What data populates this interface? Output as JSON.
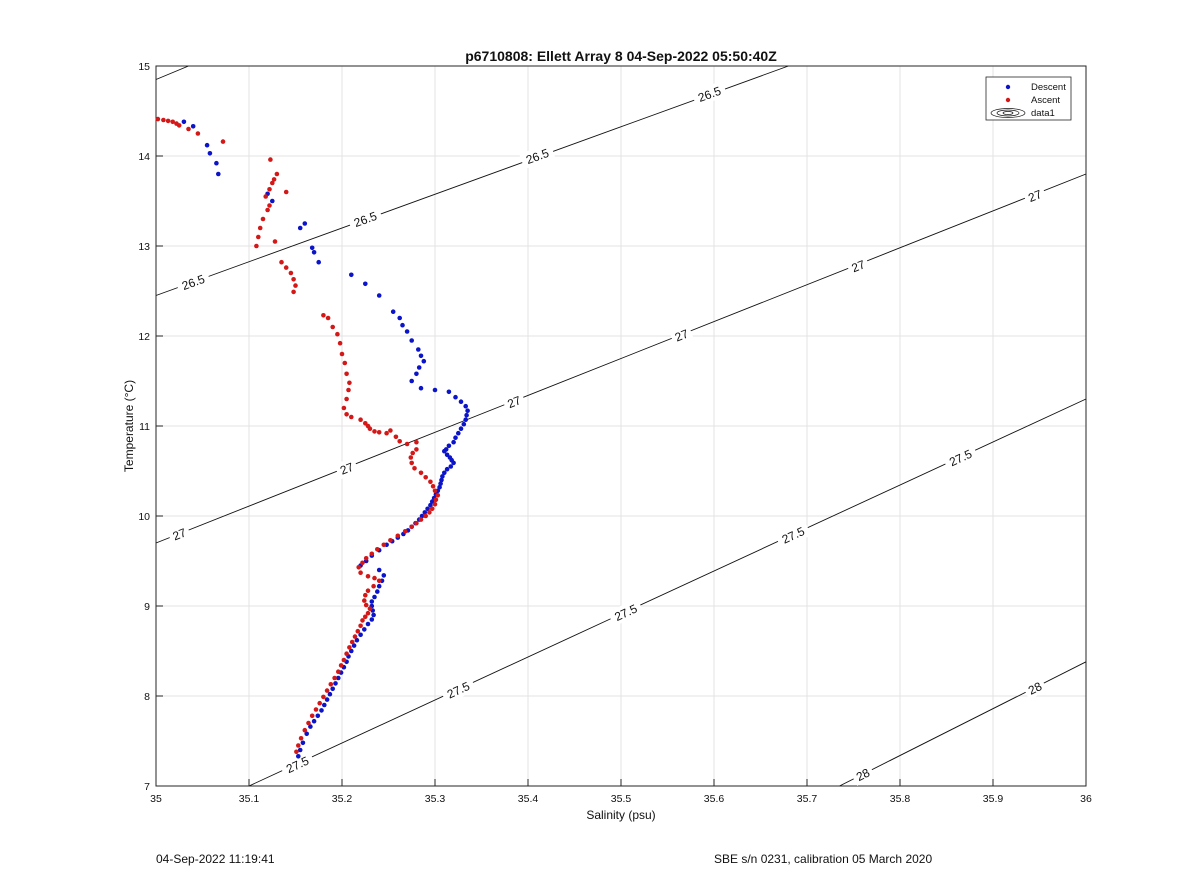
{
  "figure": {
    "title": "p6710808: Ellett Array 8 04-Sep-2022 05:50:40Z",
    "footer_left": "04-Sep-2022 11:19:41",
    "footer_right": "SBE s/n 0231, calibration 05 March 2020"
  },
  "chart_data": {
    "type": "scatter",
    "title": "p6710808: Ellett Array 8 04-Sep-2022 05:50:40Z",
    "xlabel": "Salinity (psu)",
    "ylabel": "Temperature (°C)",
    "xlim": [
      35,
      36
    ],
    "ylim": [
      7,
      15
    ],
    "xticks": [
      "35",
      "35.1",
      "35.2",
      "35.3",
      "35.4",
      "35.5",
      "35.6",
      "35.7",
      "35.8",
      "35.9",
      "36"
    ],
    "yticks": [
      "7",
      "8",
      "9",
      "10",
      "11",
      "12",
      "13",
      "14",
      "15"
    ],
    "grid": true,
    "legend": {
      "placement": "top-right",
      "entries": [
        {
          "label": "Descent",
          "color": "#0b14c8",
          "marker": "dot"
        },
        {
          "label": "Ascent",
          "color": "#d41818",
          "marker": "dot"
        },
        {
          "label": "data1",
          "color": "#000000",
          "marker": "contour"
        }
      ]
    },
    "series": [
      {
        "name": "Descent",
        "color": "#0b14c8",
        "points": [
          [
            35.03,
            14.38
          ],
          [
            35.04,
            14.33
          ],
          [
            35.055,
            14.12
          ],
          [
            35.058,
            14.03
          ],
          [
            35.065,
            13.92
          ],
          [
            35.067,
            13.8
          ],
          [
            35.12,
            13.58
          ],
          [
            35.125,
            13.5
          ],
          [
            35.16,
            13.25
          ],
          [
            35.155,
            13.2
          ],
          [
            35.168,
            12.98
          ],
          [
            35.17,
            12.93
          ],
          [
            35.175,
            12.82
          ],
          [
            35.21,
            12.68
          ],
          [
            35.225,
            12.58
          ],
          [
            35.24,
            12.45
          ],
          [
            35.255,
            12.27
          ],
          [
            35.262,
            12.2
          ],
          [
            35.265,
            12.12
          ],
          [
            35.27,
            12.05
          ],
          [
            35.275,
            11.95
          ],
          [
            35.282,
            11.85
          ],
          [
            35.285,
            11.78
          ],
          [
            35.288,
            11.72
          ],
          [
            35.283,
            11.65
          ],
          [
            35.28,
            11.58
          ],
          [
            35.275,
            11.5
          ],
          [
            35.285,
            11.42
          ],
          [
            35.3,
            11.4
          ],
          [
            35.315,
            11.38
          ],
          [
            35.322,
            11.32
          ],
          [
            35.328,
            11.27
          ],
          [
            35.333,
            11.22
          ],
          [
            35.335,
            11.17
          ],
          [
            35.334,
            11.12
          ],
          [
            35.333,
            11.07
          ],
          [
            35.331,
            11.02
          ],
          [
            35.328,
            10.97
          ],
          [
            35.325,
            10.92
          ],
          [
            35.322,
            10.87
          ],
          [
            35.32,
            10.82
          ],
          [
            35.315,
            10.78
          ],
          [
            35.312,
            10.74
          ],
          [
            35.31,
            10.72
          ],
          [
            35.313,
            10.68
          ],
          [
            35.316,
            10.65
          ],
          [
            35.318,
            10.62
          ],
          [
            35.32,
            10.59
          ],
          [
            35.317,
            10.55
          ],
          [
            35.313,
            10.52
          ],
          [
            35.31,
            10.48
          ],
          [
            35.308,
            10.44
          ],
          [
            35.307,
            10.4
          ],
          [
            35.306,
            10.36
          ],
          [
            35.305,
            10.32
          ],
          [
            35.303,
            10.28
          ],
          [
            35.301,
            10.24
          ],
          [
            35.299,
            10.2
          ],
          [
            35.297,
            10.16
          ],
          [
            35.295,
            10.12
          ],
          [
            35.292,
            10.08
          ],
          [
            35.289,
            10.04
          ],
          [
            35.286,
            10.0
          ],
          [
            35.283,
            9.96
          ],
          [
            35.279,
            9.92
          ],
          [
            35.275,
            9.88
          ],
          [
            35.271,
            9.84
          ],
          [
            35.266,
            9.8
          ],
          [
            35.26,
            9.76
          ],
          [
            35.254,
            9.72
          ],
          [
            35.248,
            9.68
          ],
          [
            35.24,
            9.62
          ],
          [
            35.232,
            9.56
          ],
          [
            35.226,
            9.5
          ],
          [
            35.22,
            9.45
          ],
          [
            35.24,
            9.4
          ],
          [
            35.245,
            9.34
          ],
          [
            35.243,
            9.28
          ],
          [
            35.24,
            9.22
          ],
          [
            35.238,
            9.16
          ],
          [
            35.235,
            9.1
          ],
          [
            35.232,
            9.05
          ],
          [
            35.232,
            9.0
          ],
          [
            35.233,
            8.95
          ],
          [
            35.234,
            8.9
          ],
          [
            35.232,
            8.85
          ],
          [
            35.228,
            8.8
          ],
          [
            35.224,
            8.74
          ],
          [
            35.22,
            8.68
          ],
          [
            35.216,
            8.62
          ],
          [
            35.213,
            8.56
          ],
          [
            35.21,
            8.5
          ],
          [
            35.207,
            8.44
          ],
          [
            35.205,
            8.38
          ],
          [
            35.202,
            8.32
          ],
          [
            35.199,
            8.26
          ],
          [
            35.196,
            8.2
          ],
          [
            35.193,
            8.14
          ],
          [
            35.19,
            8.08
          ],
          [
            35.187,
            8.02
          ],
          [
            35.184,
            7.96
          ],
          [
            35.181,
            7.9
          ],
          [
            35.178,
            7.84
          ],
          [
            35.174,
            7.78
          ],
          [
            35.17,
            7.72
          ],
          [
            35.166,
            7.66
          ],
          [
            35.162,
            7.58
          ],
          [
            35.158,
            7.48
          ],
          [
            35.155,
            7.4
          ],
          [
            35.153,
            7.33
          ]
        ]
      },
      {
        "name": "Ascent",
        "color": "#d41818",
        "points": [
          [
            35.002,
            14.41
          ],
          [
            35.008,
            14.4
          ],
          [
            35.013,
            14.39
          ],
          [
            35.018,
            14.38
          ],
          [
            35.022,
            14.36
          ],
          [
            35.025,
            14.34
          ],
          [
            35.035,
            14.3
          ],
          [
            35.045,
            14.25
          ],
          [
            35.072,
            14.16
          ],
          [
            35.123,
            13.96
          ],
          [
            35.13,
            13.8
          ],
          [
            35.127,
            13.74
          ],
          [
            35.125,
            13.7
          ],
          [
            35.122,
            13.63
          ],
          [
            35.14,
            13.6
          ],
          [
            35.118,
            13.55
          ],
          [
            35.122,
            13.45
          ],
          [
            35.12,
            13.4
          ],
          [
            35.115,
            13.3
          ],
          [
            35.112,
            13.2
          ],
          [
            35.11,
            13.1
          ],
          [
            35.108,
            13.0
          ],
          [
            35.128,
            13.05
          ],
          [
            35.135,
            12.82
          ],
          [
            35.14,
            12.76
          ],
          [
            35.145,
            12.7
          ],
          [
            35.148,
            12.63
          ],
          [
            35.15,
            12.56
          ],
          [
            35.148,
            12.49
          ],
          [
            35.18,
            12.23
          ],
          [
            35.185,
            12.2
          ],
          [
            35.19,
            12.1
          ],
          [
            35.195,
            12.02
          ],
          [
            35.198,
            11.92
          ],
          [
            35.2,
            11.8
          ],
          [
            35.203,
            11.7
          ],
          [
            35.205,
            11.58
          ],
          [
            35.208,
            11.48
          ],
          [
            35.207,
            11.4
          ],
          [
            35.205,
            11.3
          ],
          [
            35.202,
            11.2
          ],
          [
            35.205,
            11.13
          ],
          [
            35.21,
            11.1
          ],
          [
            35.22,
            11.07
          ],
          [
            35.225,
            11.03
          ],
          [
            35.228,
            11.0
          ],
          [
            35.23,
            10.97
          ],
          [
            35.235,
            10.94
          ],
          [
            35.24,
            10.93
          ],
          [
            35.248,
            10.92
          ],
          [
            35.252,
            10.95
          ],
          [
            35.258,
            10.88
          ],
          [
            35.262,
            10.83
          ],
          [
            35.27,
            10.8
          ],
          [
            35.28,
            10.82
          ],
          [
            35.28,
            10.74
          ],
          [
            35.276,
            10.7
          ],
          [
            35.274,
            10.65
          ],
          [
            35.275,
            10.59
          ],
          [
            35.278,
            10.53
          ],
          [
            35.285,
            10.48
          ],
          [
            35.29,
            10.43
          ],
          [
            35.295,
            10.38
          ],
          [
            35.298,
            10.33
          ],
          [
            35.3,
            10.28
          ],
          [
            35.303,
            10.23
          ],
          [
            35.301,
            10.18
          ],
          [
            35.3,
            10.13
          ],
          [
            35.297,
            10.08
          ],
          [
            35.294,
            10.04
          ],
          [
            35.29,
            10.0
          ],
          [
            35.285,
            9.96
          ],
          [
            35.28,
            9.92
          ],
          [
            35.275,
            9.88
          ],
          [
            35.268,
            9.83
          ],
          [
            35.26,
            9.78
          ],
          [
            35.252,
            9.73
          ],
          [
            35.245,
            9.68
          ],
          [
            35.238,
            9.63
          ],
          [
            35.232,
            9.58
          ],
          [
            35.226,
            9.53
          ],
          [
            35.222,
            9.48
          ],
          [
            35.218,
            9.43
          ],
          [
            35.22,
            9.37
          ],
          [
            35.228,
            9.33
          ],
          [
            35.235,
            9.31
          ],
          [
            35.24,
            9.28
          ],
          [
            35.234,
            9.22
          ],
          [
            35.228,
            9.17
          ],
          [
            35.225,
            9.12
          ],
          [
            35.224,
            9.06
          ],
          [
            35.226,
            9.01
          ],
          [
            35.23,
            8.97
          ],
          [
            35.228,
            8.92
          ],
          [
            35.225,
            8.88
          ],
          [
            35.222,
            8.84
          ],
          [
            35.22,
            8.78
          ],
          [
            35.217,
            8.72
          ],
          [
            35.214,
            8.66
          ],
          [
            35.211,
            8.6
          ],
          [
            35.208,
            8.54
          ],
          [
            35.205,
            8.47
          ],
          [
            35.202,
            8.4
          ],
          [
            35.199,
            8.34
          ],
          [
            35.196,
            8.27
          ],
          [
            35.192,
            8.2
          ],
          [
            35.188,
            8.13
          ],
          [
            35.184,
            8.06
          ],
          [
            35.18,
            7.99
          ],
          [
            35.176,
            7.92
          ],
          [
            35.172,
            7.85
          ],
          [
            35.168,
            7.78
          ],
          [
            35.164,
            7.7
          ],
          [
            35.16,
            7.62
          ],
          [
            35.156,
            7.53
          ],
          [
            35.153,
            7.45
          ],
          [
            35.151,
            7.38
          ]
        ]
      }
    ],
    "contours": [
      {
        "level": "26.5",
        "points": [
          [
            35,
            12.45
          ],
          [
            35.68,
            15
          ]
        ],
        "labels": [
          [
            35.04,
            12.6
          ],
          [
            35.225,
            13.3
          ],
          [
            35.41,
            14.0
          ],
          [
            35.595,
            14.69
          ]
        ]
      },
      {
        "level": "27",
        "points": [
          [
            35,
            9.7
          ],
          [
            36,
            13.8
          ]
        ],
        "labels": [
          [
            35.025,
            9.8
          ],
          [
            35.205,
            10.53
          ],
          [
            35.385,
            11.27
          ],
          [
            35.565,
            12.01
          ],
          [
            35.755,
            12.78
          ],
          [
            35.945,
            13.56
          ]
        ]
      },
      {
        "level": "27.5",
        "points": [
          [
            35.1,
            7
          ],
          [
            36,
            11.3
          ]
        ],
        "labels": [
          [
            35.152,
            7.24
          ],
          [
            35.325,
            8.07
          ],
          [
            35.505,
            8.93
          ],
          [
            35.685,
            9.79
          ],
          [
            35.865,
            10.65
          ]
        ]
      },
      {
        "level": "27",
        "points": [
          [
            35,
            14.85
          ],
          [
            35.035,
            15
          ]
        ],
        "labels": []
      },
      {
        "level": "28",
        "points": [
          [
            35.735,
            7
          ],
          [
            36,
            8.38
          ]
        ],
        "labels": [
          [
            35.76,
            7.13
          ],
          [
            35.945,
            8.09
          ]
        ]
      }
    ]
  }
}
